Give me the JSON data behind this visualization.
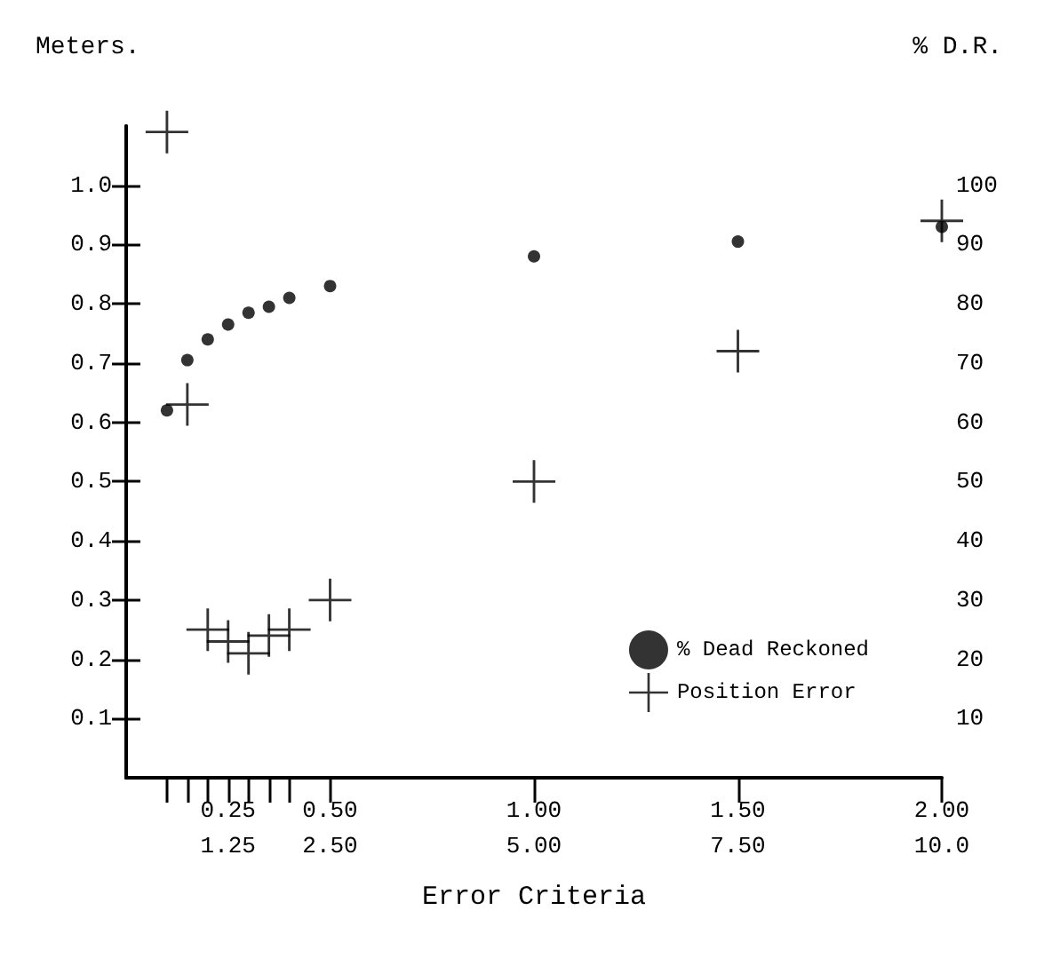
{
  "chart_data": {
    "type": "scatter",
    "xlabel": "Error Criteria",
    "ylabel": "Meters.",
    "y2label": "% D.R.",
    "xlim": [
      0,
      2.0
    ],
    "ylim": [
      0,
      1.1
    ],
    "y2lim": [
      0,
      110
    ],
    "x2lim": [
      0,
      10
    ],
    "xticks": [
      {
        "value": 0.1,
        "label": null
      },
      {
        "value": 0.15,
        "label": null
      },
      {
        "value": 0.2,
        "label": null
      },
      {
        "value": 0.25,
        "label": "0.25"
      },
      {
        "value": 0.3,
        "label": null
      },
      {
        "value": 0.35,
        "label": null
      },
      {
        "value": 0.4,
        "label": null
      },
      {
        "value": 0.5,
        "label": "0.50"
      },
      {
        "value": 1,
        "label": "1.00"
      },
      {
        "value": 1.5,
        "label": "1.50"
      },
      {
        "value": 2,
        "label": "2.00"
      }
    ],
    "x2ticks": [
      1.25,
      {
        "value": 2.5,
        "label": "2.50"
      },
      {
        "value": 5,
        "label": "5.00"
      },
      {
        "value": 7.5,
        "label": "7.50"
      },
      {
        "value": 10,
        "label": "10.0"
      }
    ],
    "yticks": [
      0.1,
      0.2,
      0.3,
      0.4,
      0.5,
      0.6,
      0.7,
      0.8,
      0.9,
      {
        "value": 1,
        "label": "1.0"
      }
    ],
    "y2ticks": [
      10,
      20,
      30,
      40,
      50,
      60,
      70,
      80,
      90,
      100
    ],
    "series": [
      {
        "name": "% Dead Reckoned",
        "color": "#000000",
        "marker": "circle",
        "axis": "y2",
        "x": [
          0.1,
          0.15,
          0.2,
          0.25,
          0.3,
          0.35,
          0.4,
          0.5,
          1.0,
          1.5,
          2.0
        ],
        "values": [
          62,
          70.5,
          74,
          76.5,
          78.5,
          79.5,
          81,
          83,
          88,
          90.5,
          93
        ]
      },
      {
        "name": "Position Error",
        "color": "#000000",
        "marker": "cross",
        "axis": "y",
        "x": [
          0.1,
          0.15,
          0.2,
          0.25,
          0.3,
          0.35,
          0.4,
          0.5,
          1.0,
          1.5,
          2.0
        ],
        "values": [
          1.09,
          0.63,
          0.25,
          0.23,
          0.21,
          0.24,
          0.25,
          0.3,
          0.5,
          0.72,
          0.94
        ]
      }
    ],
    "grid": false,
    "legend": "bottom right"
  }
}
